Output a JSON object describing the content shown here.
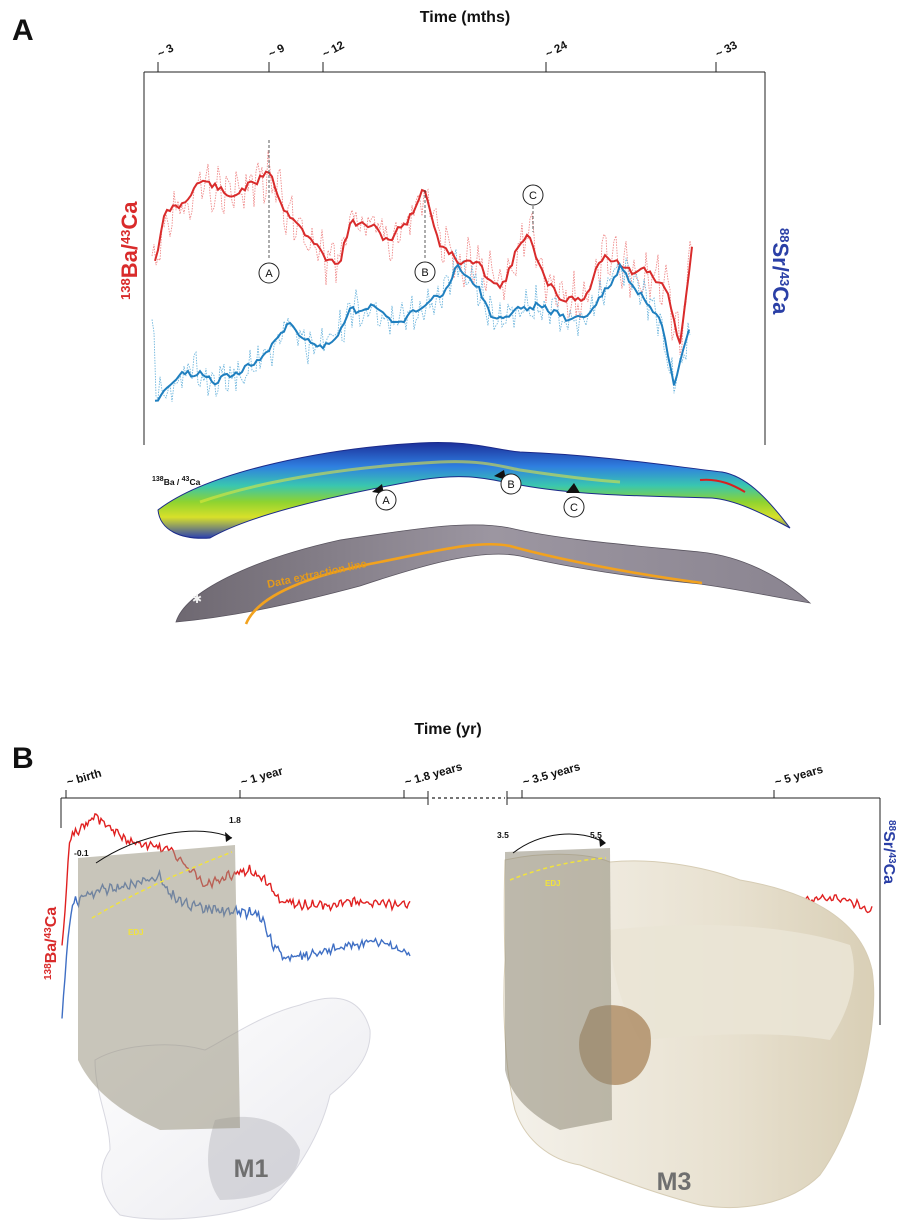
{
  "panel_a": {
    "letter": "A",
    "time_title": "Time (mths)",
    "ticks": [
      {
        "label": "~ 3",
        "month": 3
      },
      {
        "label": "~ 9",
        "month": 9
      },
      {
        "label": "~ 12",
        "month": 12
      },
      {
        "label": "~ 24",
        "month": 24
      },
      {
        "label": "~ 33",
        "month": 33
      }
    ],
    "left_label": {
      "sup": "138",
      "main": "Ba/",
      "sup2": "43",
      "main2": "Ca"
    },
    "right_label": {
      "sup": "88",
      "main": "Sr/",
      "sup2": "43",
      "main2": "Ca"
    },
    "markers": [
      "A",
      "B",
      "C"
    ],
    "map_label": {
      "sup": "138",
      "main": "Ba / ",
      "sup2": "43",
      "main2": "Ca"
    },
    "extraction_label": "Data extraction line",
    "colors": {
      "ba": "#d92b2b",
      "sr": "#1f7fbf"
    }
  },
  "panel_b": {
    "letter": "B",
    "time_title": "Time (yr)",
    "ticks": [
      "~ birth",
      "~ 1 year",
      "~ 1.8 years",
      "~ 3.5 years",
      "~ 5 years"
    ],
    "left_label": {
      "sup": "138",
      "main": "Ba/",
      "sup2": "43",
      "main2": "Ca"
    },
    "right_label": {
      "sup": "88",
      "main": "Sr/",
      "sup2": "43",
      "main2": "Ca"
    },
    "m1": {
      "tooth": "M1",
      "start": "-0.1",
      "end": "1.8",
      "edj": "EDJ"
    },
    "m3": {
      "tooth": "M3",
      "start": "3.5",
      "end": "5.5",
      "edj": "EDJ"
    },
    "colors": {
      "ba": "#e02020",
      "sr": "#3f6fc4"
    }
  }
}
